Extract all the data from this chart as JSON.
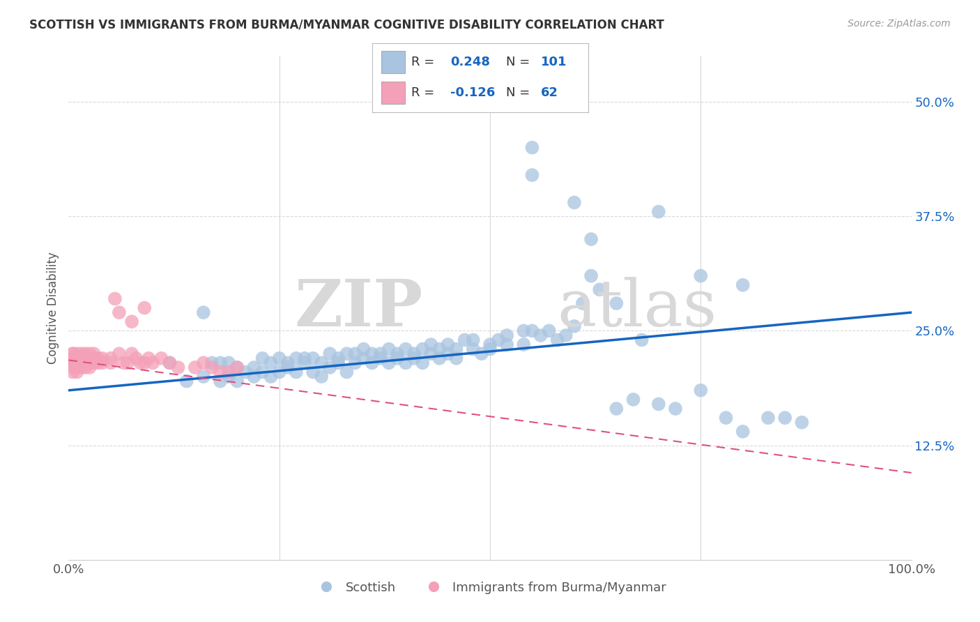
{
  "title": "SCOTTISH VS IMMIGRANTS FROM BURMA/MYANMAR COGNITIVE DISABILITY CORRELATION CHART",
  "source": "Source: ZipAtlas.com",
  "ylabel": "Cognitive Disability",
  "xlim": [
    0.0,
    1.0
  ],
  "ylim": [
    0.0,
    0.55
  ],
  "x_tick_labels": [
    "0.0%",
    "100.0%"
  ],
  "y_ticks": [
    0.125,
    0.25,
    0.375,
    0.5
  ],
  "y_tick_labels": [
    "12.5%",
    "25.0%",
    "37.5%",
    "50.0%"
  ],
  "blue_color": "#a8c4e0",
  "blue_line_color": "#1565c0",
  "pink_color": "#f4a0b8",
  "pink_line_color": "#e05080",
  "background_color": "#ffffff",
  "grid_color": "#d0d0d0",
  "watermark_zip": "ZIP",
  "watermark_atlas": "atlas",
  "blue_scatter_x": [
    0.12,
    0.14,
    0.16,
    0.16,
    0.17,
    0.18,
    0.18,
    0.19,
    0.19,
    0.2,
    0.2,
    0.21,
    0.22,
    0.22,
    0.23,
    0.23,
    0.24,
    0.24,
    0.25,
    0.25,
    0.26,
    0.26,
    0.27,
    0.27,
    0.28,
    0.28,
    0.29,
    0.29,
    0.3,
    0.3,
    0.31,
    0.31,
    0.32,
    0.32,
    0.33,
    0.33,
    0.34,
    0.34,
    0.35,
    0.35,
    0.36,
    0.36,
    0.37,
    0.37,
    0.38,
    0.38,
    0.39,
    0.39,
    0.4,
    0.4,
    0.41,
    0.41,
    0.42,
    0.42,
    0.43,
    0.43,
    0.44,
    0.44,
    0.45,
    0.45,
    0.46,
    0.46,
    0.47,
    0.48,
    0.48,
    0.49,
    0.5,
    0.5,
    0.51,
    0.52,
    0.52,
    0.54,
    0.54,
    0.55,
    0.56,
    0.57,
    0.58,
    0.59,
    0.6,
    0.61,
    0.62,
    0.63,
    0.65,
    0.67,
    0.7,
    0.72,
    0.75,
    0.78,
    0.8,
    0.83,
    0.85,
    0.87,
    0.55,
    0.6,
    0.62,
    0.65,
    0.7,
    0.75,
    0.8,
    0.55,
    0.68
  ],
  "blue_scatter_y": [
    0.215,
    0.195,
    0.27,
    0.2,
    0.215,
    0.195,
    0.215,
    0.2,
    0.215,
    0.195,
    0.21,
    0.205,
    0.21,
    0.2,
    0.22,
    0.205,
    0.215,
    0.2,
    0.22,
    0.205,
    0.215,
    0.21,
    0.22,
    0.205,
    0.22,
    0.215,
    0.205,
    0.22,
    0.215,
    0.2,
    0.225,
    0.21,
    0.22,
    0.215,
    0.225,
    0.205,
    0.225,
    0.215,
    0.22,
    0.23,
    0.215,
    0.225,
    0.22,
    0.225,
    0.215,
    0.23,
    0.22,
    0.225,
    0.215,
    0.23,
    0.225,
    0.22,
    0.23,
    0.215,
    0.225,
    0.235,
    0.22,
    0.23,
    0.225,
    0.235,
    0.22,
    0.23,
    0.24,
    0.23,
    0.24,
    0.225,
    0.235,
    0.23,
    0.24,
    0.235,
    0.245,
    0.25,
    0.235,
    0.25,
    0.245,
    0.25,
    0.24,
    0.245,
    0.255,
    0.28,
    0.31,
    0.295,
    0.165,
    0.175,
    0.17,
    0.165,
    0.185,
    0.155,
    0.14,
    0.155,
    0.155,
    0.15,
    0.42,
    0.39,
    0.35,
    0.28,
    0.38,
    0.31,
    0.3,
    0.45,
    0.24
  ],
  "pink_scatter_x": [
    0.005,
    0.005,
    0.005,
    0.005,
    0.005,
    0.005,
    0.005,
    0.005,
    0.01,
    0.01,
    0.01,
    0.01,
    0.01,
    0.01,
    0.01,
    0.01,
    0.01,
    0.015,
    0.015,
    0.015,
    0.015,
    0.015,
    0.015,
    0.02,
    0.02,
    0.02,
    0.02,
    0.02,
    0.025,
    0.025,
    0.025,
    0.03,
    0.03,
    0.03,
    0.035,
    0.035,
    0.04,
    0.04,
    0.05,
    0.05,
    0.06,
    0.065,
    0.07,
    0.075,
    0.08,
    0.085,
    0.09,
    0.095,
    0.1,
    0.11,
    0.12,
    0.13,
    0.15,
    0.16,
    0.17,
    0.18,
    0.19,
    0.2,
    0.06,
    0.09,
    0.055,
    0.075
  ],
  "pink_scatter_y": [
    0.215,
    0.22,
    0.225,
    0.21,
    0.205,
    0.215,
    0.22,
    0.225,
    0.215,
    0.225,
    0.21,
    0.22,
    0.215,
    0.21,
    0.22,
    0.215,
    0.205,
    0.215,
    0.225,
    0.22,
    0.21,
    0.215,
    0.22,
    0.22,
    0.215,
    0.225,
    0.21,
    0.22,
    0.215,
    0.225,
    0.21,
    0.225,
    0.215,
    0.22,
    0.22,
    0.215,
    0.22,
    0.215,
    0.22,
    0.215,
    0.225,
    0.215,
    0.215,
    0.225,
    0.22,
    0.215,
    0.215,
    0.22,
    0.215,
    0.22,
    0.215,
    0.21,
    0.21,
    0.215,
    0.21,
    0.205,
    0.205,
    0.21,
    0.27,
    0.275,
    0.285,
    0.26
  ],
  "blue_trend_x0": 0.0,
  "blue_trend_y0": 0.185,
  "blue_trend_x1": 1.0,
  "blue_trend_y1": 0.27,
  "pink_trend_x0": 0.0,
  "pink_trend_y0": 0.218,
  "pink_trend_x1": 1.0,
  "pink_trend_y1": 0.095
}
